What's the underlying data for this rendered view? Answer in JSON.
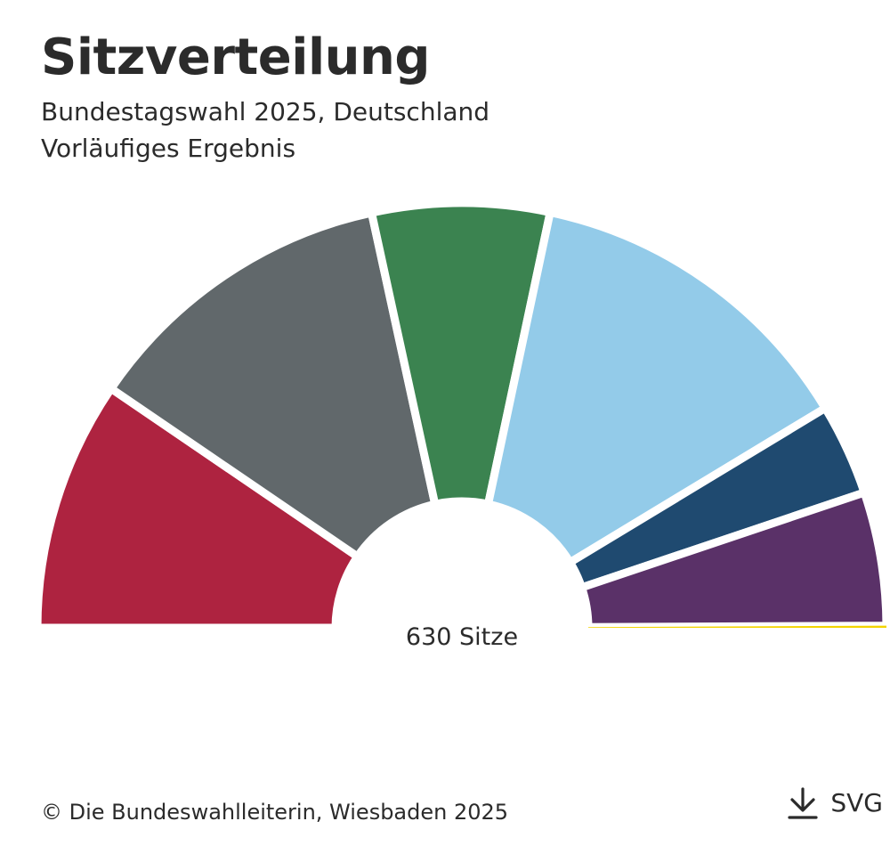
{
  "header": {
    "title": "Sitzverteilung",
    "subtitle_line1": "Bundestagswahl 2025, Deutschland",
    "subtitle_line2": "Vorläufiges Ergebnis"
  },
  "chart_data": {
    "type": "pie",
    "variant": "semicircle-parliament",
    "total_label": "630 Sitze",
    "total": 630,
    "series": [
      {
        "value": 120,
        "color": "#ae2340"
      },
      {
        "value": 152,
        "color": "#61686b"
      },
      {
        "value": 85,
        "color": "#3b8350"
      },
      {
        "value": 164,
        "color": "#93cbe9"
      },
      {
        "value": 44,
        "color": "#1f4a70"
      },
      {
        "value": 64,
        "color": "#5a3168"
      },
      {
        "value": 1,
        "color": "#f3d400"
      }
    ]
  },
  "footer": {
    "source": "© Die Bundeswahlleiterin, Wiesbaden 2025"
  },
  "download": {
    "icon": "download-icon",
    "label": "SVG"
  }
}
